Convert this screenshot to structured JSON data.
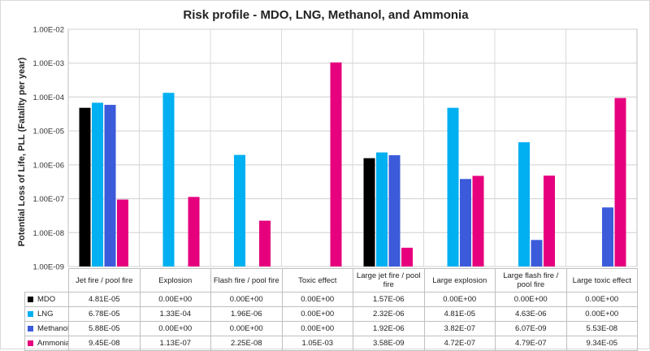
{
  "chart_data": {
    "type": "bar",
    "title": "Risk profile - MDO, LNG, Methanol, and Ammonia",
    "ylabel": "Potential Loss of Life, PLL (Fatality per year)",
    "xlabel": "",
    "yscale": "log",
    "ylim": [
      1e-09,
      0.01
    ],
    "yticks": [
      "1.00E-02",
      "1.00E-03",
      "1.00E-04",
      "1.00E-05",
      "1.00E-06",
      "1.00E-07",
      "1.00E-08",
      "1.00E-09"
    ],
    "grid": true,
    "legend": "data table below chart",
    "categories": [
      "Jet fire / pool fire",
      "Explosion",
      "Flash fire / pool fire",
      "Toxic effect",
      "Large jet fire / pool fire",
      "Large explosion",
      "Large flash fire / pool fire",
      "Large toxic effect"
    ],
    "series": [
      {
        "name": "MDO",
        "color": "#000000",
        "values": [
          4.81e-05,
          0,
          0,
          0,
          1.57e-06,
          0,
          0,
          0
        ],
        "labels": [
          "4.81E-05",
          "0.00E+00",
          "0.00E+00",
          "0.00E+00",
          "1.57E-06",
          "0.00E+00",
          "0.00E+00",
          "0.00E+00"
        ]
      },
      {
        "name": "LNG",
        "color": "#00b0f0",
        "values": [
          6.78e-05,
          0.000133,
          1.96e-06,
          0,
          2.32e-06,
          4.81e-05,
          4.63e-06,
          0
        ],
        "labels": [
          "6.78E-05",
          "1.33E-04",
          "1.96E-06",
          "0.00E+00",
          "2.32E-06",
          "4.81E-05",
          "4.63E-06",
          "0.00E+00"
        ]
      },
      {
        "name": "Methanol",
        "color": "#3b5bdb",
        "values": [
          5.88e-05,
          0,
          0,
          0,
          1.92e-06,
          3.82e-07,
          6.07e-09,
          5.53e-08
        ],
        "labels": [
          "5.88E-05",
          "0.00E+00",
          "0.00E+00",
          "0.00E+00",
          "1.92E-06",
          "3.82E-07",
          "6.07E-09",
          "5.53E-08"
        ]
      },
      {
        "name": "Ammonia",
        "color": "#e6007e",
        "values": [
          9.45e-08,
          1.13e-07,
          2.25e-08,
          0.00105,
          3.58e-09,
          4.72e-07,
          4.79e-07,
          9.34e-05
        ],
        "labels": [
          "9.45E-08",
          "1.13E-07",
          "2.25E-08",
          "1.05E-03",
          "3.58E-09",
          "4.72E-07",
          "4.79E-07",
          "9.34E-05"
        ]
      }
    ]
  }
}
